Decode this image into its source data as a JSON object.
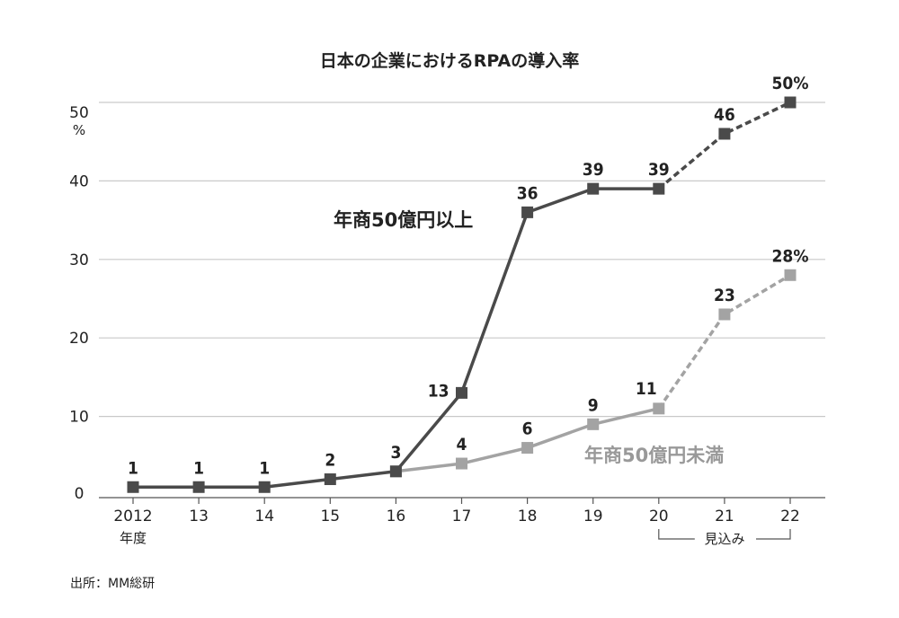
{
  "chart_data": {
    "type": "line",
    "title": "日本の企業におけるRPAの導入率",
    "y_unit_top": "50",
    "y_unit_symbol": "%",
    "ylim": [
      0,
      50
    ],
    "y_ticks": [
      "0",
      "10",
      "20",
      "30",
      "40"
    ],
    "categories": [
      "2012",
      "13",
      "14",
      "15",
      "16",
      "17",
      "18",
      "19",
      "20",
      "21",
      "22"
    ],
    "x_year_suffix": "年度",
    "series": [
      {
        "name": "年商50億円以上",
        "color": "#4a4a4a",
        "values": [
          1,
          1,
          1,
          2,
          3,
          13,
          36,
          39,
          39,
          46,
          50
        ],
        "labels": [
          "1",
          "1",
          "1",
          "2",
          "3",
          "13",
          "36",
          "39",
          "39",
          "46",
          "50%"
        ]
      },
      {
        "name": "年商50億円未満",
        "color": "#a3a3a3",
        "values": [
          null,
          null,
          null,
          null,
          3,
          4,
          6,
          9,
          11,
          23,
          28
        ],
        "labels": [
          "",
          "",
          "",
          "",
          "",
          "4",
          "6",
          "9",
          "11",
          "23",
          "28%"
        ]
      }
    ],
    "forecast_from_index": 8,
    "forecast_label": "見込み",
    "grid": true,
    "source": "出所：MM総研"
  }
}
